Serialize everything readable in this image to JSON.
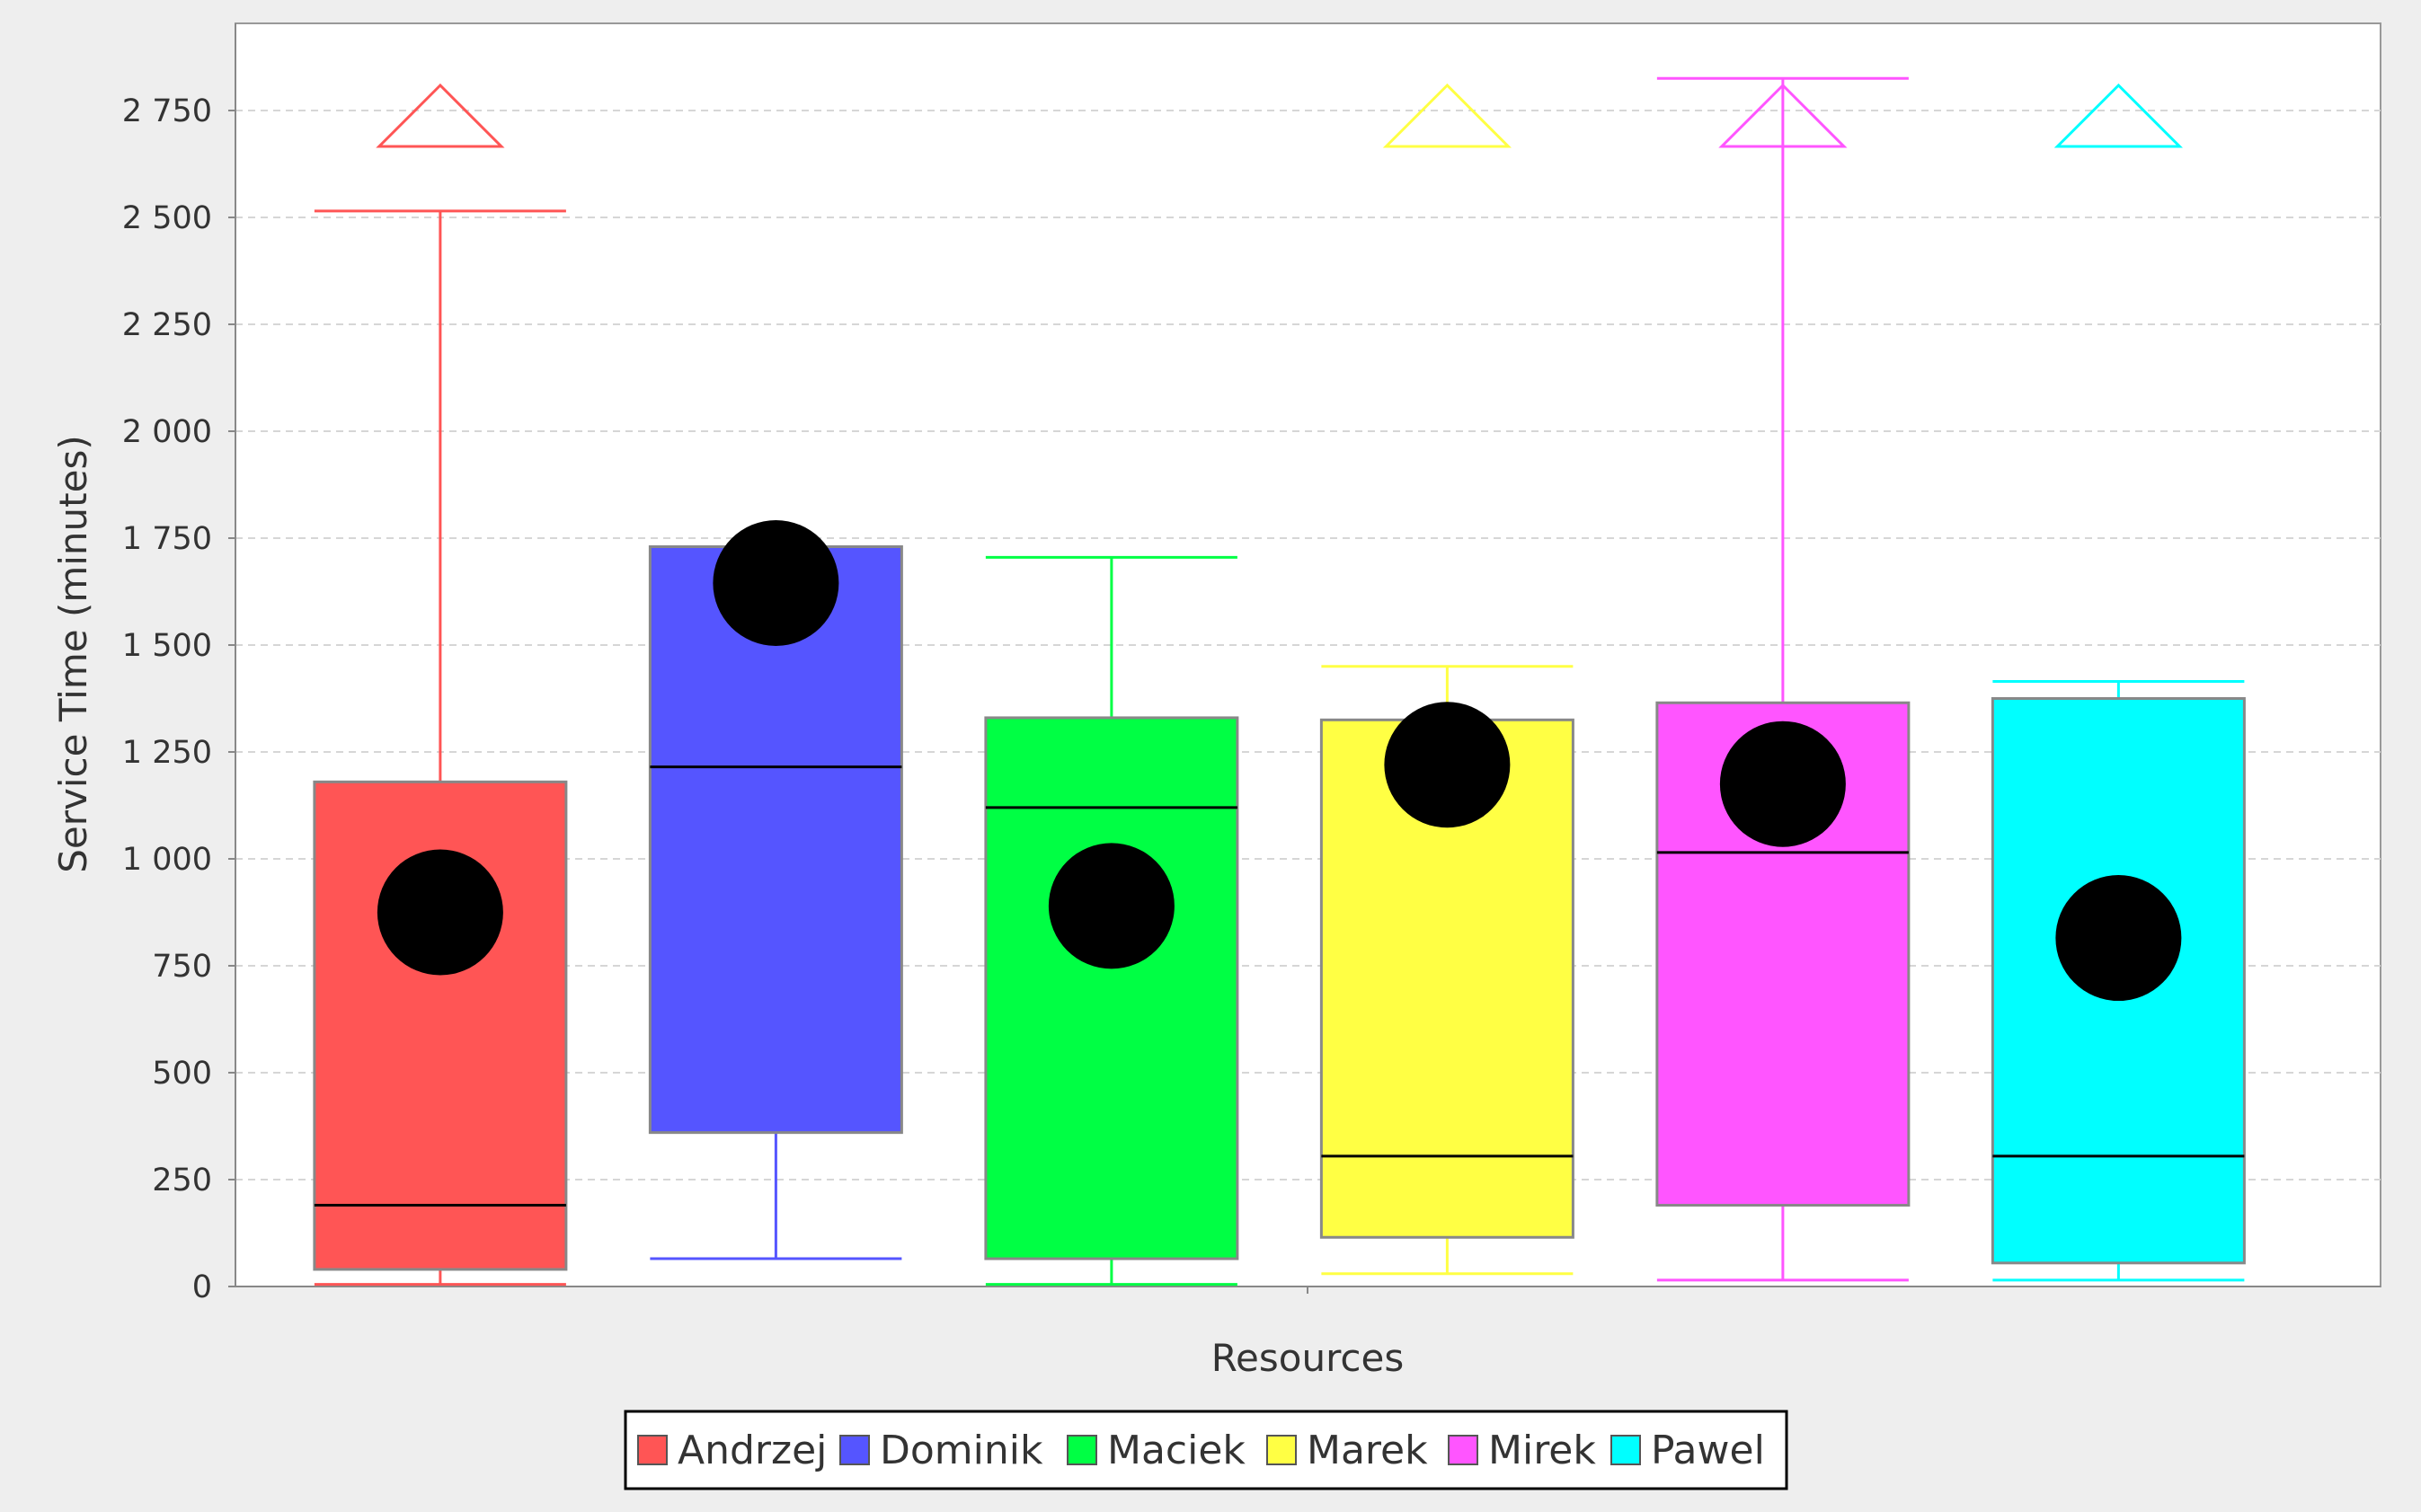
{
  "chart_data": {
    "type": "boxplot",
    "xlabel": "Resources",
    "ylabel": "Service Time (minutes)",
    "ylim": [
      0,
      2850
    ],
    "yticks": [
      0,
      250,
      500,
      750,
      1000,
      1250,
      1500,
      1750,
      2000,
      2250,
      2500,
      2750
    ],
    "ytick_labels": [
      "0",
      "250",
      "500",
      "750",
      "1 000",
      "1 250",
      "1 500",
      "1 750",
      "2 000",
      "2 250",
      "2 500",
      "2 750"
    ],
    "grid": true,
    "legend_position": "bottom",
    "series": [
      {
        "name": "Andrzej",
        "color": "#ff5555",
        "whisker_low": 5,
        "q1": 40,
        "median": 190,
        "q3": 1180,
        "whisker_high": 2515,
        "mean": 875,
        "outlier_above_range": true
      },
      {
        "name": "Dominik",
        "color": "#5555ff",
        "whisker_low": 65,
        "q1": 360,
        "median": 1215,
        "q3": 1730,
        "whisker_high": 1730,
        "mean": 1645,
        "outlier_above_range": false
      },
      {
        "name": "Maciek",
        "color": "#00ff44",
        "whisker_low": 5,
        "q1": 65,
        "median": 1120,
        "q3": 1330,
        "whisker_high": 1705,
        "mean": 890,
        "outlier_above_range": false
      },
      {
        "name": "Marek",
        "color": "#ffff44",
        "whisker_low": 30,
        "q1": 115,
        "median": 305,
        "q3": 1325,
        "whisker_high": 1450,
        "mean": 1220,
        "outlier_above_range": true
      },
      {
        "name": "Mirek",
        "color": "#ff55ff",
        "whisker_low": 15,
        "q1": 190,
        "median": 1015,
        "q3": 1365,
        "whisker_high": 2825,
        "mean": 1175,
        "outlier_above_range": true
      },
      {
        "name": "Pawel",
        "color": "#00ffff",
        "whisker_low": 15,
        "q1": 55,
        "median": 305,
        "q3": 1375,
        "whisker_high": 1415,
        "mean": 815,
        "outlier_above_range": true
      }
    ]
  }
}
